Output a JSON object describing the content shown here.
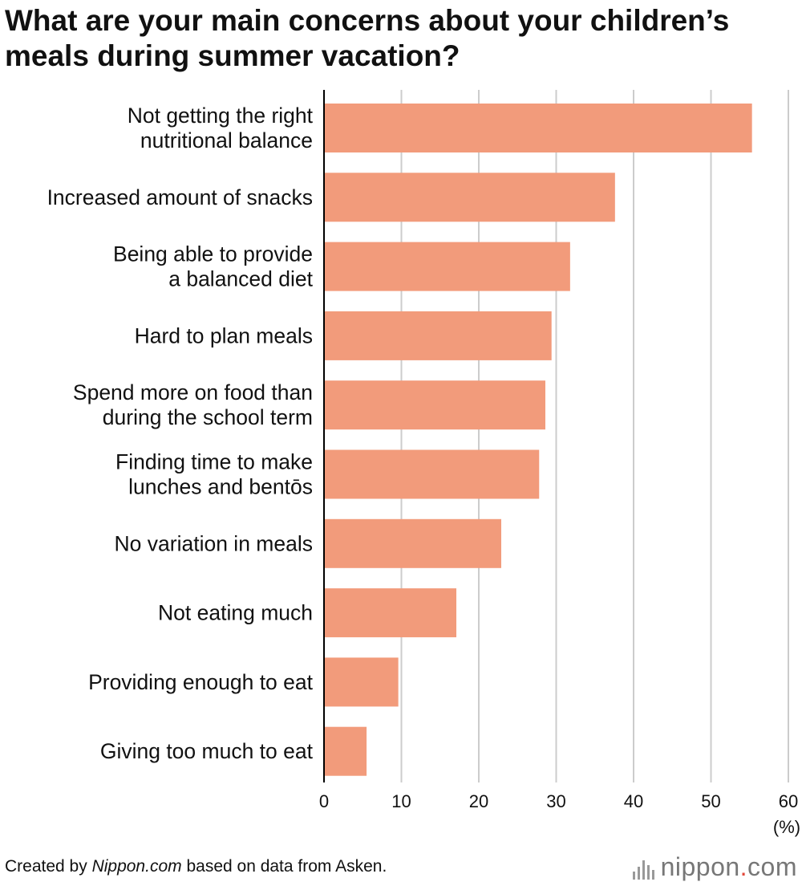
{
  "title": "What are your main concerns about your children’s meals during summer vacation?",
  "footer": {
    "prefix": "Created by ",
    "source_site": "Nippon.com",
    "suffix": " based on data from Asken."
  },
  "logo": {
    "text_left": "nippon",
    "dot": ".",
    "text_right": "com",
    "icon": "sound-bars-icon"
  },
  "colors": {
    "bar": "#f29b7b",
    "grid": "#cccccc",
    "axis": "#000000"
  },
  "chart_data": {
    "type": "bar",
    "orientation": "horizontal",
    "title": "What are your main concerns about your children’s meals during summer vacation?",
    "categories": [
      [
        "Not getting the right",
        "nutritional balance"
      ],
      [
        "Increased amount of snacks"
      ],
      [
        "Being able to provide",
        "a balanced diet"
      ],
      [
        "Hard to plan meals"
      ],
      [
        "Spend more on food than",
        "during the school term"
      ],
      [
        "Finding time to make",
        "lunches and bentōs"
      ],
      [
        "No variation in meals"
      ],
      [
        "Not eating much"
      ],
      [
        "Providing enough to eat"
      ],
      [
        "Giving too much to eat"
      ]
    ],
    "values": [
      55.3,
      37.6,
      31.8,
      29.4,
      28.6,
      27.8,
      22.9,
      17.1,
      9.6,
      5.5
    ],
    "xlim": [
      0,
      60
    ],
    "xticks": [
      0,
      10,
      20,
      30,
      40,
      50,
      60
    ],
    "unit_label": "(%)",
    "grid": true
  }
}
